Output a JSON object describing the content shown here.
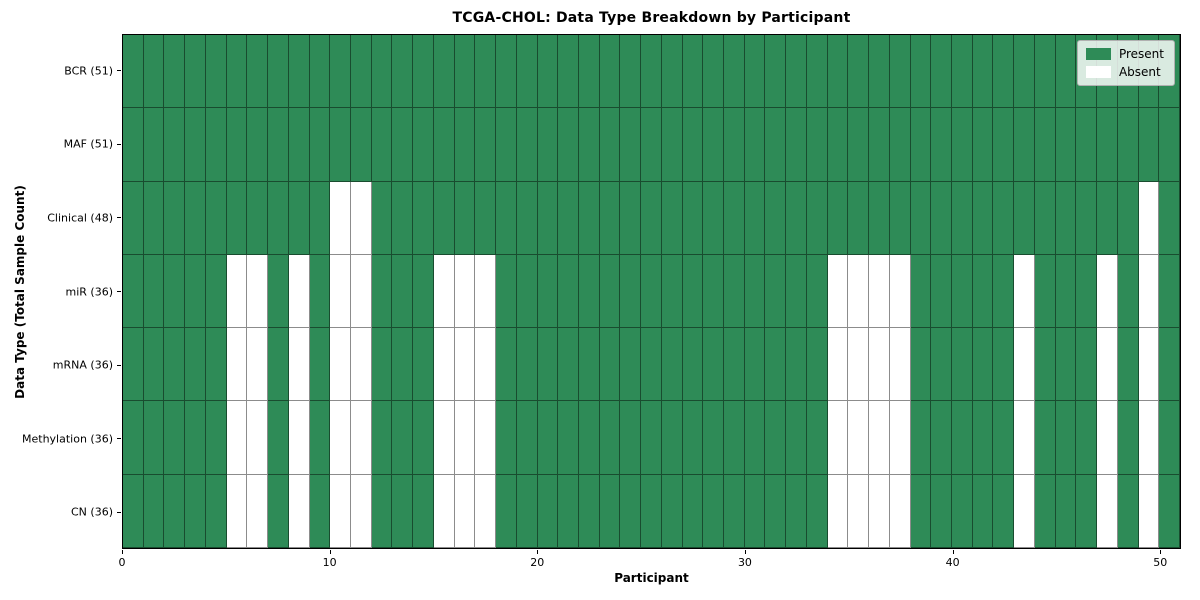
{
  "chart_data": {
    "type": "heatmap",
    "title": "TCGA-CHOL: Data Type Breakdown by Participant",
    "xlabel": "Participant",
    "ylabel": "Data Type (Total Sample Count)",
    "n_participants": 51,
    "x_range": [
      0,
      51
    ],
    "x_ticks": [
      0,
      10,
      20,
      30,
      40,
      50
    ],
    "rows": [
      {
        "label": "BCR (51)",
        "total_present": 51,
        "absent_participants": []
      },
      {
        "label": "MAF (51)",
        "total_present": 51,
        "absent_participants": []
      },
      {
        "label": "Clinical (48)",
        "total_present": 48,
        "absent_participants": [
          10,
          11,
          49
        ]
      },
      {
        "label": "miR (36)",
        "total_present": 36,
        "absent_participants": [
          5,
          6,
          8,
          10,
          11,
          15,
          16,
          17,
          34,
          35,
          36,
          37,
          43,
          47,
          49
        ]
      },
      {
        "label": "mRNA (36)",
        "total_present": 36,
        "absent_participants": [
          5,
          6,
          8,
          10,
          11,
          15,
          16,
          17,
          34,
          35,
          36,
          37,
          43,
          47,
          49
        ]
      },
      {
        "label": "Methylation (36)",
        "total_present": 36,
        "absent_participants": [
          5,
          6,
          8,
          10,
          11,
          15,
          16,
          17,
          34,
          35,
          36,
          37,
          43,
          47,
          49
        ]
      },
      {
        "label": "CN (36)",
        "total_present": 36,
        "absent_participants": [
          5,
          6,
          8,
          10,
          11,
          15,
          16,
          17,
          34,
          35,
          36,
          37,
          43,
          47,
          49
        ]
      }
    ],
    "legend": [
      {
        "label": "Present",
        "color": "#2e8b57"
      },
      {
        "label": "Absent",
        "color": "#ffffff"
      }
    ],
    "colors": {
      "present": "#2e8b57",
      "absent": "#ffffff",
      "cell_edge": "rgba(0,0,0,0.45)",
      "spine": "#000000"
    },
    "legend_position": "upper right",
    "grid": "cell-edges"
  }
}
